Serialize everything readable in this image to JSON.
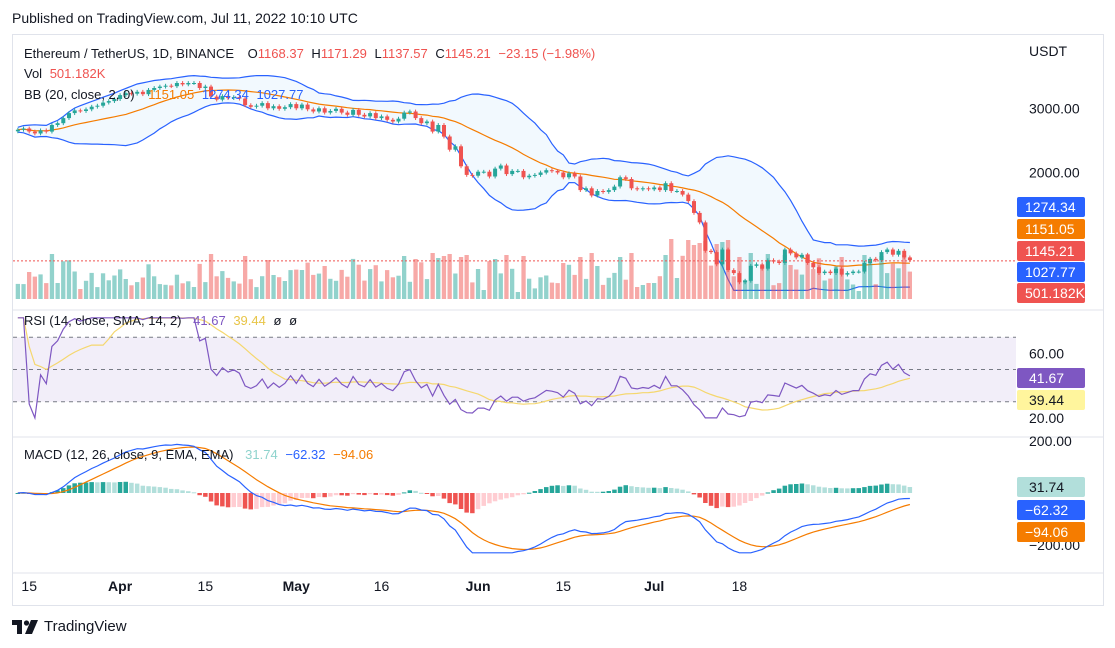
{
  "published": "Published on TradingView.com, Jul 11, 2022 10:10 UTC",
  "brand": "TradingView",
  "colors": {
    "up": "#26a69a",
    "down": "#ef5350",
    "bb": "#2962ff",
    "basis": "#f57c00",
    "rsi": "#7e57c2",
    "rsi_ma": "#f5d76e",
    "macd": "#2962ff",
    "signal": "#f57c00"
  },
  "main": {
    "title": "Ethereum / TetherUS, 1D, BINANCE",
    "open_label": "O",
    "open": "1168.37",
    "high_label": "H",
    "high": "1171.29",
    "low_label": "L",
    "low": "1137.57",
    "close_label": "C",
    "close": "1145.21",
    "change": "−23.15 (−1.98%)",
    "vol_label": "Vol",
    "vol": "501.182K",
    "bb_label": "BB (20, close, 2, 0)",
    "bb_basis": "1151.05",
    "bb_upper": "1274.34",
    "bb_lower": "1027.77",
    "currency": "USDT",
    "y_ticks": [
      "3000.00",
      "2000.00"
    ],
    "badges": {
      "upper": "1274.34",
      "basis": "1151.05",
      "price": "1145.21",
      "lower": "1027.77",
      "vol": "501.182K"
    }
  },
  "rsi": {
    "label": "RSI (14, close, SMA, 14, 2)",
    "value": "41.67",
    "ma": "39.44",
    "extra1": "ø",
    "extra2": "ø",
    "y_ticks": [
      "60.00",
      "20.00"
    ]
  },
  "macd": {
    "label": "MACD (12, 26, close, 9, EMA, EMA)",
    "hist": "31.74",
    "macd": "−62.32",
    "signal": "−94.06",
    "y_ticks": [
      "200.00",
      "−200.00"
    ]
  },
  "x_ticks": [
    "15",
    "Apr",
    "15",
    "May",
    "16",
    "Jun",
    "15",
    "Jul",
    "18"
  ],
  "chart_data": {
    "type": "candlestick",
    "title": "Ethereum / TetherUS, 1D, BINANCE",
    "period": "1D",
    "x_ticks": [
      "15",
      "Apr",
      "15",
      "May",
      "16",
      "Jun",
      "15",
      "Jul",
      "18"
    ],
    "close": [
      2620,
      2640,
      2590,
      2560,
      2610,
      2590,
      2700,
      2730,
      2820,
      2910,
      2960,
      2950,
      2980,
      3030,
      3050,
      3110,
      3140,
      3180,
      3260,
      3300,
      3290,
      3330,
      3280,
      3370,
      3410,
      3440,
      3460,
      3450,
      3520,
      3490,
      3520,
      3520,
      3410,
      3440,
      3230,
      3170,
      3240,
      3200,
      3220,
      3190,
      3060,
      3030,
      3050,
      3100,
      3000,
      3040,
      2990,
      3020,
      3080,
      3000,
      3070,
      2980,
      2940,
      3000,
      2920,
      2950,
      2990,
      2920,
      2880,
      2970,
      2880,
      2850,
      2910,
      2820,
      2850,
      2790,
      2760,
      2810,
      2920,
      2940,
      2820,
      2730,
      2760,
      2590,
      2700,
      2510,
      2310,
      2360,
      2080,
      1970,
      1960,
      2010,
      2010,
      1950,
      2050,
      2090,
      1980,
      2020,
      2020,
      1940,
      1960,
      1970,
      2000,
      2030,
      2020,
      2000,
      1940,
      1990,
      1950,
      1790,
      1810,
      1730,
      1780,
      1770,
      1790,
      1830,
      1940,
      1920,
      1810,
      1800,
      1810,
      1800,
      1820,
      1790,
      1870,
      1780,
      1780,
      1740,
      1670,
      1550,
      1460,
      1220,
      1210,
      1120,
      1230,
      1080,
      1060,
      1000,
      1010,
      1110,
      1120,
      1090,
      1150,
      1140,
      1130,
      1230,
      1200,
      1170,
      1190,
      1130,
      1100,
      1060,
      1070,
      1060,
      1090,
      1050,
      1060,
      1070,
      1070,
      1130,
      1160,
      1150,
      1210,
      1230,
      1190,
      1220,
      1170,
      1150
    ],
    "bb_upper_last": 1274.34,
    "bb_basis_last": 1151.05,
    "bb_lower_last": 1027.77,
    "volume_last": "501.182K",
    "rsi_last": 41.67,
    "rsi_ma_last": 39.44,
    "macd_hist_last": 31.74,
    "macd_last": -62.32,
    "macd_signal_last": -94.06,
    "ylim_price_log": [
      900,
      4200
    ],
    "rsi_bands": [
      70,
      50,
      30
    ]
  }
}
